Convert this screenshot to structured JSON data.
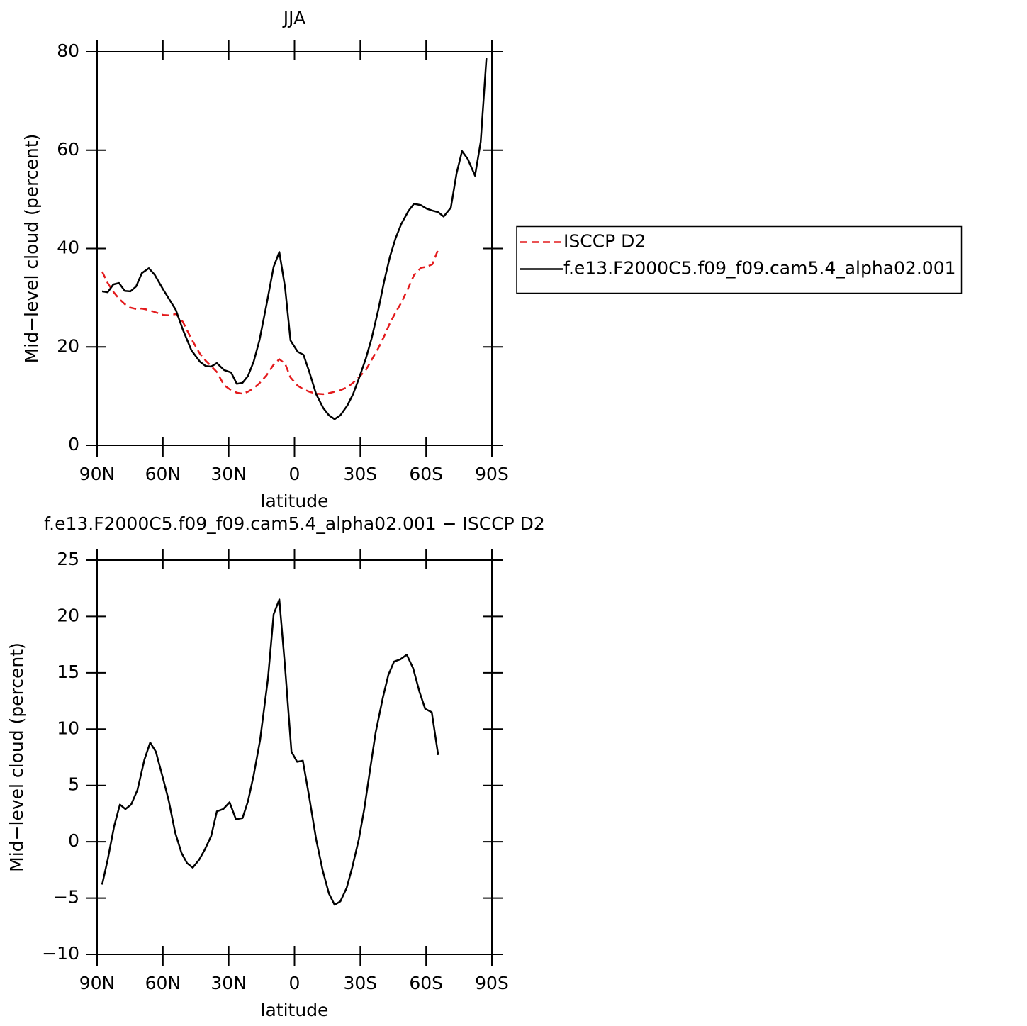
{
  "chart_data": [
    {
      "type": "line",
      "title": "JJA",
      "xlabel": "latitude",
      "ylabel": "Mid−level cloud (percent)",
      "x": [
        87.7,
        85.2,
        82.6,
        80.0,
        77.4,
        74.8,
        72.2,
        69.6,
        66.4,
        63.8,
        59.9,
        56.7,
        54.1,
        50.9,
        47.0,
        43.1,
        40.5,
        38.0,
        35.4,
        32.1,
        28.9,
        26.3,
        23.7,
        21.2,
        18.6,
        16.0,
        12.8,
        9.5,
        6.9,
        4.3,
        1.8,
        -1.5,
        -4.1,
        -6.7,
        -9.9,
        -13.1,
        -15.7,
        -18.3,
        -20.9,
        -24.1,
        -26.7,
        -29.3,
        -32.5,
        -35.1,
        -38.3,
        -40.9,
        -43.5,
        -46.1,
        -48.7,
        -51.9,
        -54.5,
        -57.7,
        -60.3,
        -62.9,
        -65.5,
        -68.0,
        -71.3,
        -73.9,
        -76.4,
        -79.0,
        -82.3,
        -84.9,
        -87.5
      ],
      "series": [
        {
          "name": "ISCCP D2",
          "color": "#e31a1c",
          "dash": true,
          "values": [
            35.3,
            33.0,
            31.2,
            29.8,
            28.7,
            28.0,
            27.7,
            27.8,
            27.5,
            27.1,
            26.5,
            26.4,
            26.7,
            25.1,
            21.6,
            18.6,
            17.2,
            16.1,
            14.9,
            12.2,
            11.2,
            10.7,
            10.5,
            10.9,
            11.6,
            12.6,
            14.2,
            16.4,
            17.5,
            16.6,
            13.8,
            12.1,
            11.4,
            10.9,
            10.5,
            10.4,
            10.6,
            10.9,
            11.2,
            11.8,
            12.7,
            13.8,
            15.3,
            17.3,
            19.8,
            22.2,
            24.8,
            27.0,
            29.0,
            32.0,
            34.6,
            36.1,
            36.3,
            36.8,
            39.8,
            null,
            null,
            null,
            null,
            null,
            null,
            null,
            null
          ]
        },
        {
          "name": "f.e13.F2000C5.f09_f09.cam5.4_alpha02.001",
          "color": "#000000",
          "dash": false,
          "values": [
            31.3,
            31.1,
            32.7,
            33.0,
            31.4,
            31.3,
            32.3,
            35.0,
            36.0,
            34.7,
            31.7,
            29.4,
            27.5,
            23.5,
            19.3,
            17.0,
            16.1,
            16.0,
            16.7,
            15.3,
            14.8,
            12.5,
            12.7,
            14.1,
            17.0,
            21.3,
            28.5,
            36.3,
            39.3,
            32.1,
            21.3,
            19.0,
            18.4,
            15.0,
            10.4,
            7.6,
            6.1,
            5.3,
            6.1,
            8.1,
            10.4,
            13.5,
            17.6,
            21.6,
            27.7,
            33.4,
            38.3,
            42.1,
            45.0,
            47.6,
            49.1,
            48.8,
            48.1,
            47.7,
            47.4,
            46.5,
            48.3,
            55.3,
            59.8,
            58.2,
            54.8,
            61.7,
            78.7
          ]
        }
      ],
      "xlim": [
        90,
        -90
      ],
      "xticks": [
        {
          "value": 90,
          "label": "90N"
        },
        {
          "value": 60,
          "label": "60N"
        },
        {
          "value": 30,
          "label": "30N"
        },
        0,
        {
          "value": -30,
          "label": "30S"
        },
        {
          "value": -60,
          "label": "60S"
        },
        {
          "value": -90,
          "label": "90S"
        }
      ],
      "ylim": [
        0,
        80
      ],
      "yticks": [
        0,
        20,
        40,
        60,
        80
      ],
      "legend": "right"
    },
    {
      "type": "line",
      "title": "f.e13.F2000C5.f09_f09.cam5.4_alpha02.001 − ISCCP D2",
      "xlabel": "latitude",
      "ylabel": "Mid−level cloud (percent)",
      "x": [
        87.7,
        85.2,
        82.2,
        79.6,
        77.1,
        74.5,
        71.6,
        68.4,
        65.8,
        63.2,
        59.9,
        57.4,
        54.4,
        51.5,
        49.0,
        46.4,
        43.5,
        40.9,
        38.0,
        35.4,
        32.5,
        29.6,
        26.7,
        23.7,
        21.2,
        18.6,
        15.7,
        12.1,
        9.5,
        6.9,
        4.3,
        1.4,
        -1.2,
        -3.8,
        -6.7,
        -9.9,
        -12.8,
        -15.7,
        -18.3,
        -20.9,
        -23.8,
        -26.3,
        -29.3,
        -31.8,
        -34.4,
        -37.0,
        -40.3,
        -42.8,
        -45.4,
        -48.3,
        -51.2,
        -54.1,
        -57.0,
        -59.6,
        -62.6,
        -65.5
      ],
      "series": [
        {
          "color": "#000000",
          "dash": false,
          "values": [
            -3.8,
            -1.6,
            1.4,
            3.3,
            2.9,
            3.3,
            4.6,
            7.3,
            8.8,
            8.0,
            5.6,
            3.7,
            0.8,
            -1.0,
            -1.9,
            -2.3,
            -1.6,
            -0.7,
            0.5,
            2.7,
            2.9,
            3.5,
            2.0,
            2.1,
            3.6,
            5.9,
            9.0,
            14.5,
            20.2,
            21.5,
            15.5,
            8.0,
            7.1,
            7.2,
            4.0,
            0.2,
            -2.5,
            -4.6,
            -5.6,
            -5.3,
            -4.1,
            -2.3,
            0.2,
            2.9,
            6.3,
            9.7,
            12.8,
            14.8,
            16.0,
            16.2,
            16.6,
            15.4,
            13.3,
            11.8,
            11.5,
            7.7
          ]
        }
      ],
      "xlim": [
        90,
        -90
      ],
      "xticks": [
        {
          "value": 90,
          "label": "90N"
        },
        {
          "value": 60,
          "label": "60N"
        },
        {
          "value": 30,
          "label": "30N"
        },
        0,
        {
          "value": -30,
          "label": "30S"
        },
        {
          "value": -60,
          "label": "60S"
        },
        {
          "value": -90,
          "label": "90S"
        }
      ],
      "ylim": [
        -10,
        25
      ],
      "yticks": [
        {
          "value": -10,
          "label": "−10"
        },
        {
          "value": -5,
          "label": "−5"
        },
        0,
        5,
        10,
        15,
        20,
        25
      ]
    }
  ]
}
